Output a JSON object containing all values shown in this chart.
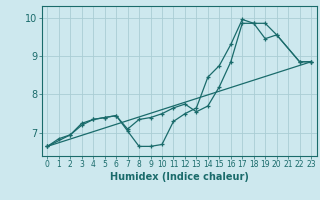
{
  "xlabel": "Humidex (Indice chaleur)",
  "background_color": "#cde8ee",
  "line_color": "#1a6b6b",
  "grid_color": "#aacdd4",
  "xlim": [
    -0.5,
    23.5
  ],
  "ylim": [
    6.4,
    10.3
  ],
  "xticks": [
    0,
    1,
    2,
    3,
    4,
    5,
    6,
    7,
    8,
    9,
    10,
    11,
    12,
    13,
    14,
    15,
    16,
    17,
    18,
    19,
    20,
    21,
    22,
    23
  ],
  "yticks": [
    7,
    8,
    9,
    10
  ],
  "series": [
    {
      "x": [
        0,
        1,
        2,
        3,
        4,
        5,
        6,
        7,
        8,
        9,
        10,
        11,
        12,
        13,
        14,
        15,
        16,
        17,
        18,
        19,
        20,
        22,
        23
      ],
      "y": [
        6.65,
        6.85,
        6.95,
        7.25,
        7.35,
        7.4,
        7.45,
        7.1,
        7.35,
        7.4,
        7.5,
        7.65,
        7.75,
        7.55,
        7.7,
        8.2,
        8.85,
        9.85,
        9.85,
        9.85,
        9.55,
        8.85,
        8.85
      ]
    },
    {
      "x": [
        0,
        2,
        3,
        4,
        5,
        6,
        7,
        8,
        9,
        10,
        11,
        12,
        13,
        14,
        15,
        16,
        17,
        18,
        19,
        20,
        22,
        23
      ],
      "y": [
        6.65,
        6.95,
        7.2,
        7.35,
        7.4,
        7.45,
        7.05,
        6.65,
        6.65,
        6.7,
        7.3,
        7.5,
        7.65,
        8.45,
        8.75,
        9.3,
        9.95,
        9.85,
        9.45,
        9.55,
        8.85,
        8.85
      ]
    },
    {
      "x": [
        0,
        23
      ],
      "y": [
        6.65,
        8.85
      ]
    }
  ]
}
